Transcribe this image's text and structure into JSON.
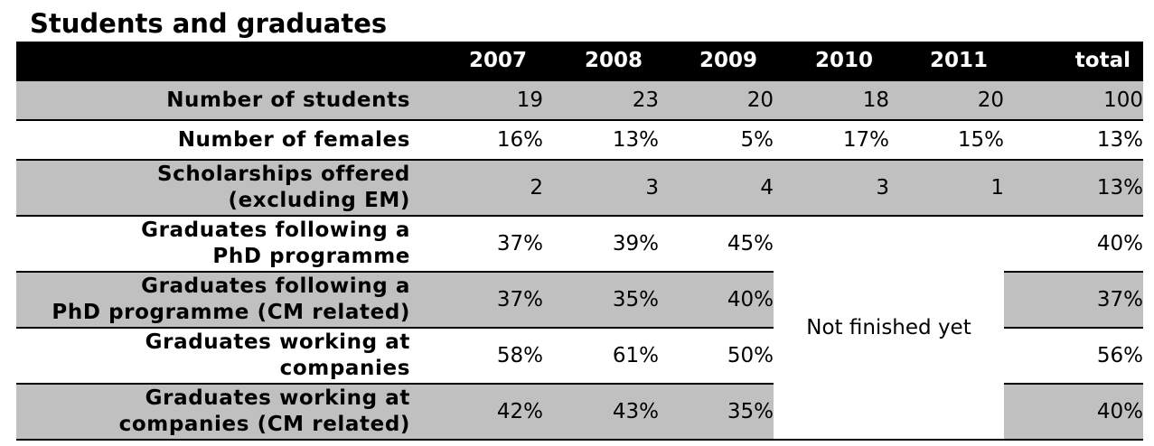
{
  "title": "Students and graduates",
  "columns": [
    "",
    "2007",
    "2008",
    "2009",
    "2010",
    "2011",
    "total"
  ],
  "rows": [
    {
      "label": "Number of students",
      "values": [
        "19",
        "23",
        "20",
        "18",
        "20"
      ],
      "total": "100"
    },
    {
      "label": "Number of females",
      "values": [
        "16%",
        "13%",
        "5%",
        "17%",
        "15%"
      ],
      "total": "13%"
    },
    {
      "label_line1": "Scholarships offered",
      "label_line2": "(excluding EM)",
      "values": [
        "2",
        "3",
        "4",
        "3",
        "1"
      ],
      "total": "13%"
    },
    {
      "label_line1": "Graduates following a",
      "label_line2": "PhD programme",
      "values": [
        "37%",
        "39%",
        "45%"
      ],
      "total": "40%"
    },
    {
      "label_line1": "Graduates following a",
      "label_line2": "PhD programme (CM related)",
      "values": [
        "37%",
        "35%",
        "40%"
      ],
      "total": "37%"
    },
    {
      "label_line1": "Graduates working at",
      "label_line2": "companies",
      "values": [
        "58%",
        "61%",
        "50%"
      ],
      "total": "56%"
    },
    {
      "label_line1": "Graduates working at",
      "label_line2": "companies (CM related)",
      "values": [
        "42%",
        "43%",
        "35%"
      ],
      "total": "40%"
    }
  ],
  "not_finished_text": "Not finished yet",
  "colors": {
    "header_bg": "#000000",
    "header_text": "#ffffff",
    "row_gray": "#c0c0c0",
    "row_white": "#ffffff"
  }
}
